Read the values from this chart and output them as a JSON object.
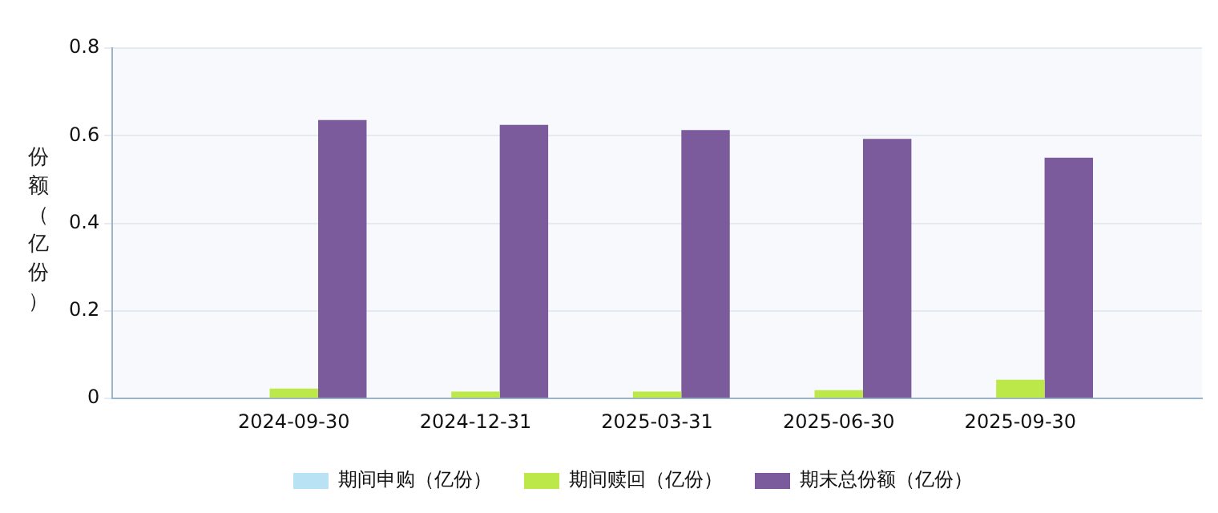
{
  "chart_data": {
    "type": "bar",
    "ylabel": "份额（亿份）",
    "categories": [
      "2024-09-30",
      "2024-12-31",
      "2025-03-31",
      "2025-06-30",
      "2025-09-30"
    ],
    "series": [
      {
        "name": "期间申购（亿份）",
        "color": "#b9e3f5",
        "values": [
          null,
          null,
          null,
          null,
          null
        ]
      },
      {
        "name": "期间赎回（亿份）",
        "color": "#bde84a",
        "values": [
          0.023,
          0.016,
          0.016,
          0.019,
          0.043
        ]
      },
      {
        "name": "期末总份额（亿份）",
        "color": "#7b5b9b",
        "values": [
          0.636,
          0.625,
          0.613,
          0.593,
          0.55
        ]
      }
    ],
    "ylim": [
      0,
      0.8
    ],
    "yticks": [
      0,
      0.2,
      0.4,
      0.6,
      0.8
    ],
    "grid": "y",
    "legend": "bottom"
  }
}
